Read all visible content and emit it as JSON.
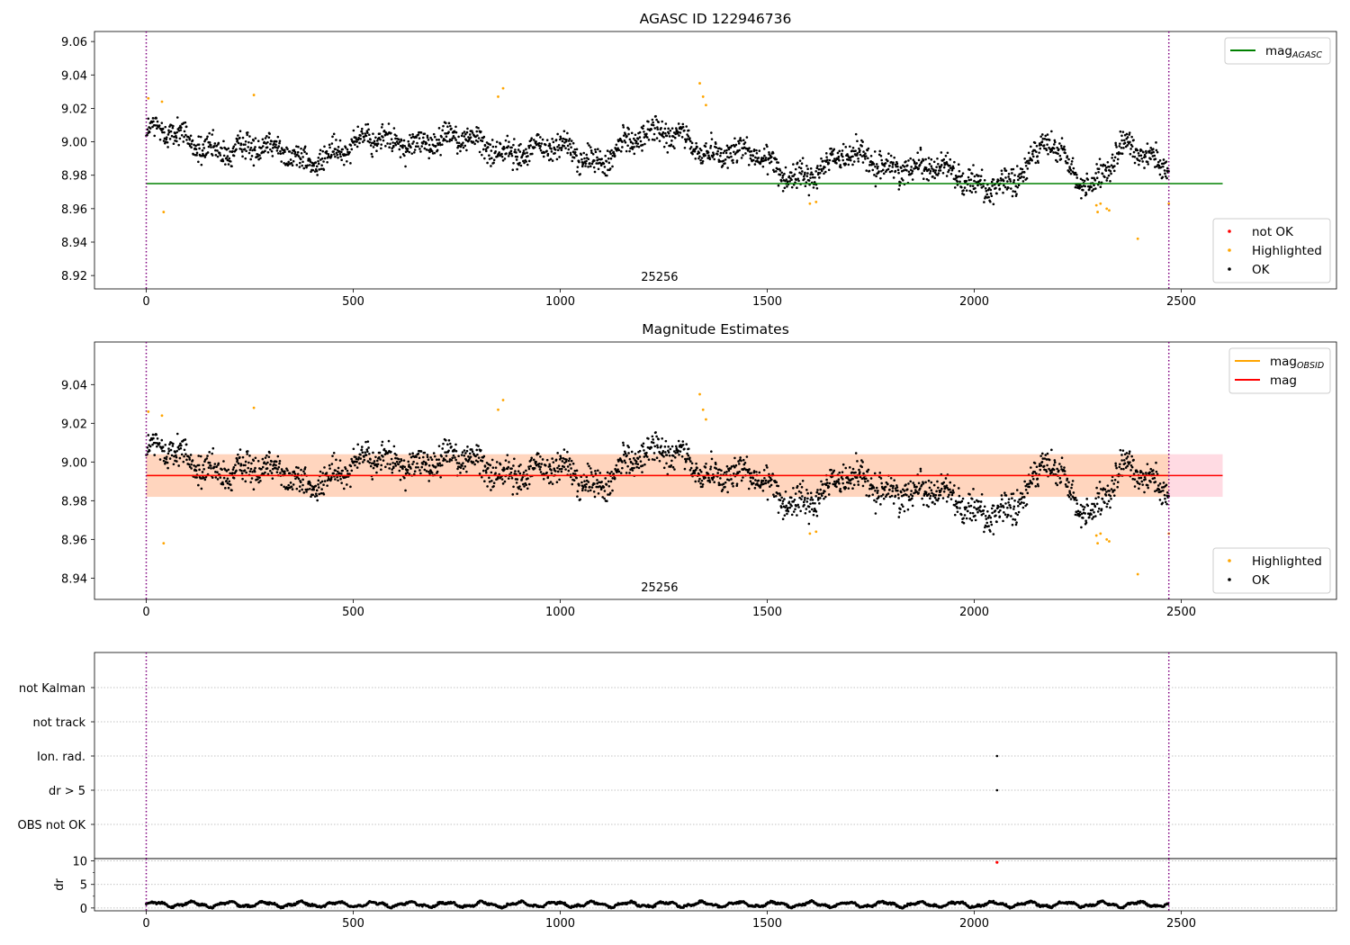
{
  "chart_data": [
    {
      "type": "scatter",
      "title": "AGASC ID 122946736",
      "annotation": "25256",
      "xlim": [
        -125,
        2875
      ],
      "ylim": [
        8.912,
        9.066
      ],
      "xticks": [
        0,
        500,
        1000,
        1500,
        2000,
        2500
      ],
      "yticks": [
        8.92,
        8.94,
        8.96,
        8.98,
        9.0,
        9.02,
        9.04,
        9.06
      ],
      "ytick_labels": [
        "8.92",
        "8.94",
        "8.96",
        "8.98",
        "9.00",
        "9.02",
        "9.04",
        "9.06"
      ],
      "obs_boundaries": [
        0,
        2470
      ],
      "reference_lines": [
        {
          "name": "mag",
          "sub": "AGASC",
          "value": 8.975,
          "x_range": [
            0,
            2600
          ],
          "color": "#008000"
        }
      ],
      "series": [
        {
          "name": "not OK",
          "color": "#ff0000",
          "points": []
        },
        {
          "name": "Highlighted",
          "color": "#ffa500",
          "points": [
            [
              5,
              9.026
            ],
            [
              38,
              9.024
            ],
            [
              42,
              8.958
            ],
            [
              260,
              9.028
            ],
            [
              850,
              9.027
            ],
            [
              862,
              9.032
            ],
            [
              1337,
              9.035
            ],
            [
              1345,
              9.027
            ],
            [
              1352,
              9.022
            ],
            [
              1603,
              8.963
            ],
            [
              1618,
              8.964
            ],
            [
              2295,
              8.962
            ],
            [
              2298,
              8.958
            ],
            [
              2305,
              8.963
            ],
            [
              2320,
              8.96
            ],
            [
              2326,
              8.959
            ],
            [
              2395,
              8.942
            ],
            [
              2470,
              8.963
            ]
          ]
        },
        {
          "name": "OK",
          "color": "#000000",
          "generated": true,
          "x_range": [
            0,
            2470
          ],
          "count": 2200
        }
      ],
      "legends": [
        {
          "position": "top-right",
          "entries": [
            {
              "label": "mag",
              "sub": "AGASC",
              "kind": "line",
              "color": "#008000"
            }
          ]
        },
        {
          "position": "bottom-right",
          "entries": [
            {
              "label": "not OK",
              "kind": "dot",
              "color": "#ff0000"
            },
            {
              "label": "Highlighted",
              "kind": "dot",
              "color": "#ffa500"
            },
            {
              "label": "OK",
              "kind": "dot",
              "color": "#000000"
            }
          ]
        }
      ]
    },
    {
      "type": "scatter",
      "title": "Magnitude Estimates",
      "annotation": "25256",
      "xlim": [
        -125,
        2875
      ],
      "ylim": [
        8.929,
        9.062
      ],
      "xticks": [
        0,
        500,
        1000,
        1500,
        2000,
        2500
      ],
      "yticks": [
        8.94,
        8.96,
        8.98,
        9.0,
        9.02,
        9.04
      ],
      "ytick_labels": [
        "8.94",
        "8.96",
        "8.98",
        "9.00",
        "9.02",
        "9.04"
      ],
      "obs_boundaries": [
        0,
        2470
      ],
      "bands": [
        {
          "name": "mag band",
          "y_range": [
            8.982,
            9.004
          ],
          "x_range": [
            0,
            2600
          ],
          "color": "#ffb0c0"
        },
        {
          "name": "OBSID band",
          "y_range": [
            8.982,
            9.004
          ],
          "x_range": [
            0,
            2470
          ],
          "color": "#ffd0a0"
        }
      ],
      "reference_lines": [
        {
          "name": "mag",
          "sub": "OBSID",
          "value": 8.993,
          "x_range": [
            0,
            2470
          ],
          "color": "#ffa500"
        },
        {
          "name": "mag",
          "value": 8.993,
          "x_range": [
            0,
            2600
          ],
          "color": "#ff0000"
        }
      ],
      "series": [
        {
          "name": "Highlighted",
          "color": "#ffa500",
          "same_as": "panel1.Highlighted"
        },
        {
          "name": "OK",
          "color": "#000000",
          "same_as": "panel1.OK"
        }
      ],
      "legends": [
        {
          "position": "top-right",
          "entries": [
            {
              "label": "mag",
              "sub": "OBSID",
              "kind": "line",
              "color": "#ffa500"
            },
            {
              "label": "mag",
              "kind": "line",
              "color": "#ff0000"
            }
          ]
        },
        {
          "position": "bottom-right",
          "entries": [
            {
              "label": "Highlighted",
              "kind": "dot",
              "color": "#ffa500"
            },
            {
              "label": "OK",
              "kind": "dot",
              "color": "#000000"
            }
          ]
        }
      ]
    },
    {
      "type": "scatter",
      "title": "",
      "xlim": [
        -125,
        2875
      ],
      "categories": [
        "not Kalman",
        "not track",
        "Ion. rad.",
        "dr > 5",
        "OBS not OK"
      ],
      "obs_boundaries": [
        0,
        2470
      ],
      "flags": [
        {
          "category": "Ion. rad.",
          "x": 2055
        },
        {
          "category": "dr > 5",
          "x": 2055
        }
      ]
    },
    {
      "type": "scatter",
      "title": "",
      "xlim": [
        -125,
        2875
      ],
      "ylim": [
        -0.6,
        10.5
      ],
      "ylabel": "dr",
      "xticks": [
        0,
        500,
        1000,
        1500,
        2000,
        2500
      ],
      "yticks": [
        0,
        5,
        10
      ],
      "obs_boundaries": [
        0,
        2470
      ],
      "series": [
        {
          "name": "OK",
          "color": "#000000",
          "generated": true,
          "x_range": [
            0,
            2470
          ],
          "y_range": [
            0.1,
            1.6
          ]
        },
        {
          "name": "not OK",
          "color": "#ff0000",
          "points": [
            [
              2055,
              9.7
            ]
          ]
        }
      ]
    }
  ]
}
